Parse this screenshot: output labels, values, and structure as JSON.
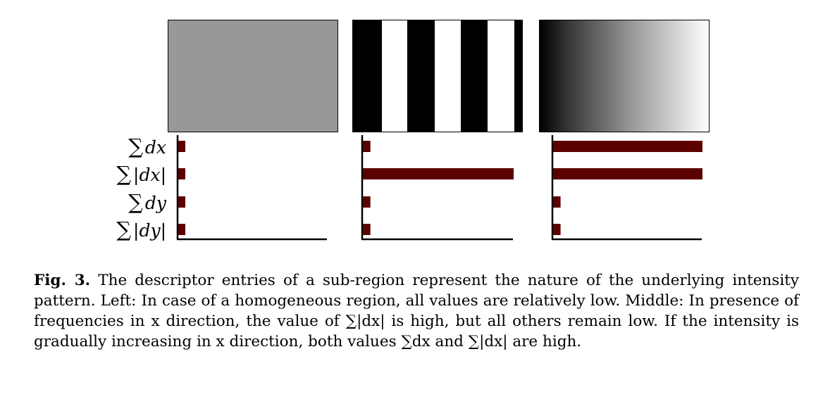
{
  "figure": {
    "row_labels": [
      "∑ dx",
      "∑ |dx|",
      "∑ dy",
      "∑ |dy|"
    ],
    "row_label_parts": [
      {
        "sigma": "∑",
        "text": "dx"
      },
      {
        "sigma": "∑",
        "text": "|dx|"
      },
      {
        "sigma": "∑",
        "text": "dy"
      },
      {
        "sigma": "∑",
        "text": "|dy|"
      }
    ],
    "patches": [
      {
        "name": "homogeneous",
        "description_visible": false
      },
      {
        "name": "stripes-x",
        "description_visible": false
      },
      {
        "name": "gradient-x",
        "description_visible": false
      }
    ],
    "bar_color": "#5c0000"
  },
  "chart_data": [
    {
      "type": "bar",
      "orientation": "horizontal",
      "categories": [
        "∑ dx",
        "∑ |dx|",
        "∑ dy",
        "∑ |dy|"
      ],
      "values": [
        0.05,
        0.05,
        0.05,
        0.05
      ],
      "xlim": [
        0,
        1
      ]
    },
    {
      "type": "bar",
      "orientation": "horizontal",
      "categories": [
        "∑ dx",
        "∑ |dx|",
        "∑ dy",
        "∑ |dy|"
      ],
      "values": [
        0.05,
        1.0,
        0.05,
        0.05
      ],
      "xlim": [
        0,
        1
      ]
    },
    {
      "type": "bar",
      "orientation": "horizontal",
      "categories": [
        "∑ dx",
        "∑ |dx|",
        "∑ dy",
        "∑ |dy|"
      ],
      "values": [
        1.0,
        1.0,
        0.05,
        0.05
      ],
      "xlim": [
        0,
        1
      ]
    }
  ],
  "caption": {
    "label": "Fig. 3.",
    "text": "The descriptor entries of a sub-region represent the nature of the underlying intensity pattern. Left: In case of a homogeneous region, all values are relatively low. Middle: In presence of frequencies in x direction, the value of ∑|dx| is high, but all others remain low. If the intensity is gradually increasing in x direction, both values ∑dx and ∑|dx| are high."
  }
}
